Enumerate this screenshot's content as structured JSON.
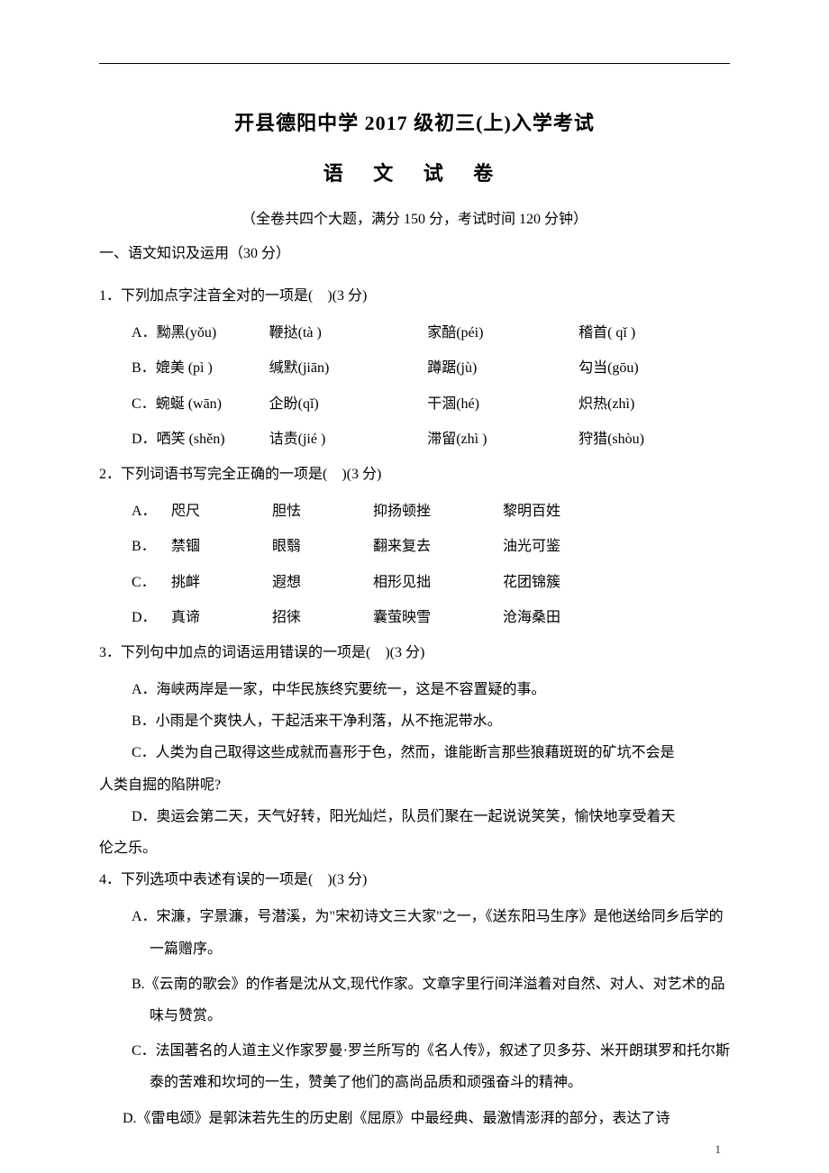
{
  "colors": {
    "text": "#000000",
    "background": "#ffffff",
    "rule": "#000000",
    "pagenum": "#333333"
  },
  "typography": {
    "body_fontsize": 16,
    "title_fontsize": 22,
    "pagenum_fontsize": 13,
    "line_height": 2.2
  },
  "header": {
    "title_main": "开县德阳中学 2017 级初三(上)入学考试",
    "title_sub": "语 文 试 卷",
    "exam_info": "（全卷共四个大题，满分 150 分，考试时间 120 分钟）"
  },
  "section1": {
    "heading": "一、语文知识及运用（30 分）"
  },
  "q1": {
    "stem_prefix": "1．下列加点字注音全对的一项是(",
    "stem_suffix": ")(3 分)",
    "options": [
      {
        "label": "A．",
        "c1": "黝黑(yǒu)",
        "c2": "鞭挞(tà )",
        "c3": "家醅(péi)",
        "c4": "稽首( qǐ )"
      },
      {
        "label": "B．",
        "c1": "媲美 (pì )",
        "c2": "缄默(jiān)",
        "c3": "蹲踞(jù)",
        "c4": "勾当(gōu)"
      },
      {
        "label": "C．",
        "c1": "蜿蜒 (wān)",
        "c2": "企盼(qǐ)",
        "c3": "干涸(hé)",
        "c4": "炽热(zhì)"
      },
      {
        "label": "D．",
        "c1": "哂笑 (shěn)",
        "c2": "诘责(jié )",
        "c3": "滞留(zhì )",
        "c4": "狩猎(shòu)"
      }
    ]
  },
  "q2": {
    "stem_prefix": "2．下列词语书写完全正确的一项是(",
    "stem_suffix": ")(3 分)",
    "options": [
      {
        "label": "A．",
        "w1": "咫尺",
        "w2": "胆怯",
        "w3": "抑扬顿挫",
        "w4": "黎明百姓"
      },
      {
        "label": "B．",
        "w1": "禁锢",
        "w2": "眼翳",
        "w3": "翻来复去",
        "w4": "油光可鉴"
      },
      {
        "label": "C．",
        "w1": "挑衅",
        "w2": "遐想",
        "w3": "相形见拙",
        "w4": "花团锦簇"
      },
      {
        "label": "D．",
        "w1": "真谛",
        "w2": "招徕",
        "w3": "囊萤映雪",
        "w4": "沧海桑田"
      }
    ]
  },
  "q3": {
    "stem_prefix": "3．下列句中加点的词语运用错误的一项是(",
    "stem_suffix": ")(3 分)",
    "options": {
      "A": "A．海峡两岸是一家，中华民族终究要统一，这是不容置疑的事。",
      "B": "B．小雨是个爽快人，干起活来干净利落，从不拖泥带水。",
      "C1": "C．人类为自己取得这些成就而喜形于色，然而，谁能断言那些狼藉斑斑的矿坑不会是",
      "C2": "人类自掘的陷阱呢?",
      "D1": "D．奥运会第二天，天气好转，阳光灿烂，队员们聚在一起说说笑笑，愉快地享受着天",
      "D2": "伦之乐。"
    }
  },
  "q4": {
    "stem_prefix": "4．下列选项中表述有误的一项是(",
    "stem_suffix": ")(3 分)",
    "options": {
      "A": "A．宋濂，字景濂，号潜溪，为\"宋初诗文三大家\"之一，《送东阳马生序》是他送给同乡后学的一篇赠序。",
      "B": "B.《云南的歌会》的作者是沈从文,现代作家。文章字里行间洋溢着对自然、对人、对艺术的品味与赞赏。",
      "C": "C．法国著名的人道主义作家罗曼·罗兰所写的《名人传》，叙述了贝多芬、米开朗琪罗和托尔斯泰的苦难和坎坷的一生，赞美了他们的高尚品质和顽强奋斗的精神。",
      "D": "D.《雷电颂》是郭沫若先生的历史剧《屈原》中最经典、最激情澎湃的部分，表达了诗"
    }
  },
  "page_number": "1"
}
